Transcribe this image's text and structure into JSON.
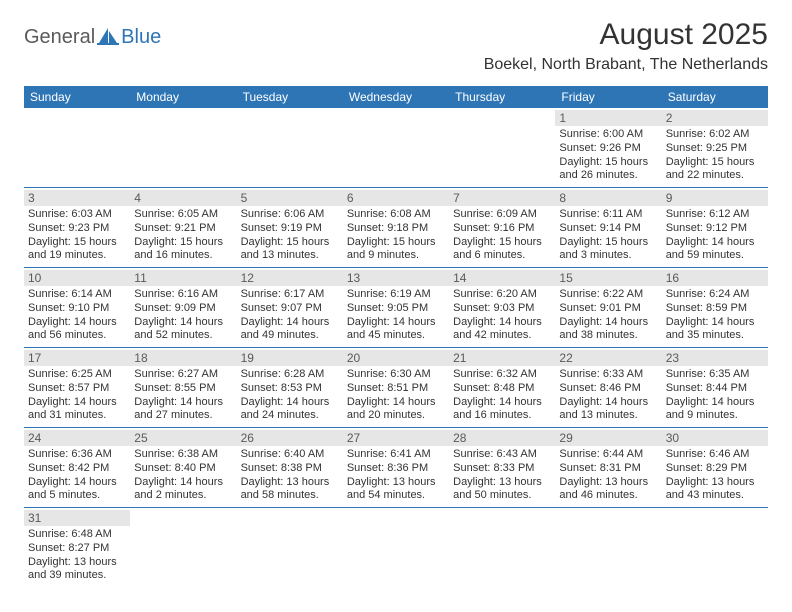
{
  "colors": {
    "header_bg": "#2e75b6",
    "header_text": "#ffffff",
    "daynum_bg": "#e6e6e6",
    "daynum_text": "#5a5a5a",
    "cell_border": "#2e75b6",
    "body_text": "#333333",
    "logo_gray": "#5a5a5a",
    "logo_blue": "#2e75b6",
    "background": "#ffffff"
  },
  "logo": {
    "text1": "General",
    "text2": "Blue"
  },
  "title": "August 2025",
  "location": "Boekel, North Brabant, The Netherlands",
  "weekdays": [
    "Sunday",
    "Monday",
    "Tuesday",
    "Wednesday",
    "Thursday",
    "Friday",
    "Saturday"
  ],
  "layout": {
    "rows": 6,
    "cols": 7,
    "first_weekday_index": 5,
    "days_in_month": 31
  },
  "days": {
    "1": {
      "sunrise": "6:00 AM",
      "sunset": "9:26 PM",
      "daylight": "15 hours and 26 minutes."
    },
    "2": {
      "sunrise": "6:02 AM",
      "sunset": "9:25 PM",
      "daylight": "15 hours and 22 minutes."
    },
    "3": {
      "sunrise": "6:03 AM",
      "sunset": "9:23 PM",
      "daylight": "15 hours and 19 minutes."
    },
    "4": {
      "sunrise": "6:05 AM",
      "sunset": "9:21 PM",
      "daylight": "15 hours and 16 minutes."
    },
    "5": {
      "sunrise": "6:06 AM",
      "sunset": "9:19 PM",
      "daylight": "15 hours and 13 minutes."
    },
    "6": {
      "sunrise": "6:08 AM",
      "sunset": "9:18 PM",
      "daylight": "15 hours and 9 minutes."
    },
    "7": {
      "sunrise": "6:09 AM",
      "sunset": "9:16 PM",
      "daylight": "15 hours and 6 minutes."
    },
    "8": {
      "sunrise": "6:11 AM",
      "sunset": "9:14 PM",
      "daylight": "15 hours and 3 minutes."
    },
    "9": {
      "sunrise": "6:12 AM",
      "sunset": "9:12 PM",
      "daylight": "14 hours and 59 minutes."
    },
    "10": {
      "sunrise": "6:14 AM",
      "sunset": "9:10 PM",
      "daylight": "14 hours and 56 minutes."
    },
    "11": {
      "sunrise": "6:16 AM",
      "sunset": "9:09 PM",
      "daylight": "14 hours and 52 minutes."
    },
    "12": {
      "sunrise": "6:17 AM",
      "sunset": "9:07 PM",
      "daylight": "14 hours and 49 minutes."
    },
    "13": {
      "sunrise": "6:19 AM",
      "sunset": "9:05 PM",
      "daylight": "14 hours and 45 minutes."
    },
    "14": {
      "sunrise": "6:20 AM",
      "sunset": "9:03 PM",
      "daylight": "14 hours and 42 minutes."
    },
    "15": {
      "sunrise": "6:22 AM",
      "sunset": "9:01 PM",
      "daylight": "14 hours and 38 minutes."
    },
    "16": {
      "sunrise": "6:24 AM",
      "sunset": "8:59 PM",
      "daylight": "14 hours and 35 minutes."
    },
    "17": {
      "sunrise": "6:25 AM",
      "sunset": "8:57 PM",
      "daylight": "14 hours and 31 minutes."
    },
    "18": {
      "sunrise": "6:27 AM",
      "sunset": "8:55 PM",
      "daylight": "14 hours and 27 minutes."
    },
    "19": {
      "sunrise": "6:28 AM",
      "sunset": "8:53 PM",
      "daylight": "14 hours and 24 minutes."
    },
    "20": {
      "sunrise": "6:30 AM",
      "sunset": "8:51 PM",
      "daylight": "14 hours and 20 minutes."
    },
    "21": {
      "sunrise": "6:32 AM",
      "sunset": "8:48 PM",
      "daylight": "14 hours and 16 minutes."
    },
    "22": {
      "sunrise": "6:33 AM",
      "sunset": "8:46 PM",
      "daylight": "14 hours and 13 minutes."
    },
    "23": {
      "sunrise": "6:35 AM",
      "sunset": "8:44 PM",
      "daylight": "14 hours and 9 minutes."
    },
    "24": {
      "sunrise": "6:36 AM",
      "sunset": "8:42 PM",
      "daylight": "14 hours and 5 minutes."
    },
    "25": {
      "sunrise": "6:38 AM",
      "sunset": "8:40 PM",
      "daylight": "14 hours and 2 minutes."
    },
    "26": {
      "sunrise": "6:40 AM",
      "sunset": "8:38 PM",
      "daylight": "13 hours and 58 minutes."
    },
    "27": {
      "sunrise": "6:41 AM",
      "sunset": "8:36 PM",
      "daylight": "13 hours and 54 minutes."
    },
    "28": {
      "sunrise": "6:43 AM",
      "sunset": "8:33 PM",
      "daylight": "13 hours and 50 minutes."
    },
    "29": {
      "sunrise": "6:44 AM",
      "sunset": "8:31 PM",
      "daylight": "13 hours and 46 minutes."
    },
    "30": {
      "sunrise": "6:46 AM",
      "sunset": "8:29 PM",
      "daylight": "13 hours and 43 minutes."
    },
    "31": {
      "sunrise": "6:48 AM",
      "sunset": "8:27 PM",
      "daylight": "13 hours and 39 minutes."
    }
  },
  "labels": {
    "sunrise": "Sunrise: ",
    "sunset": "Sunset: ",
    "daylight": "Daylight: "
  }
}
